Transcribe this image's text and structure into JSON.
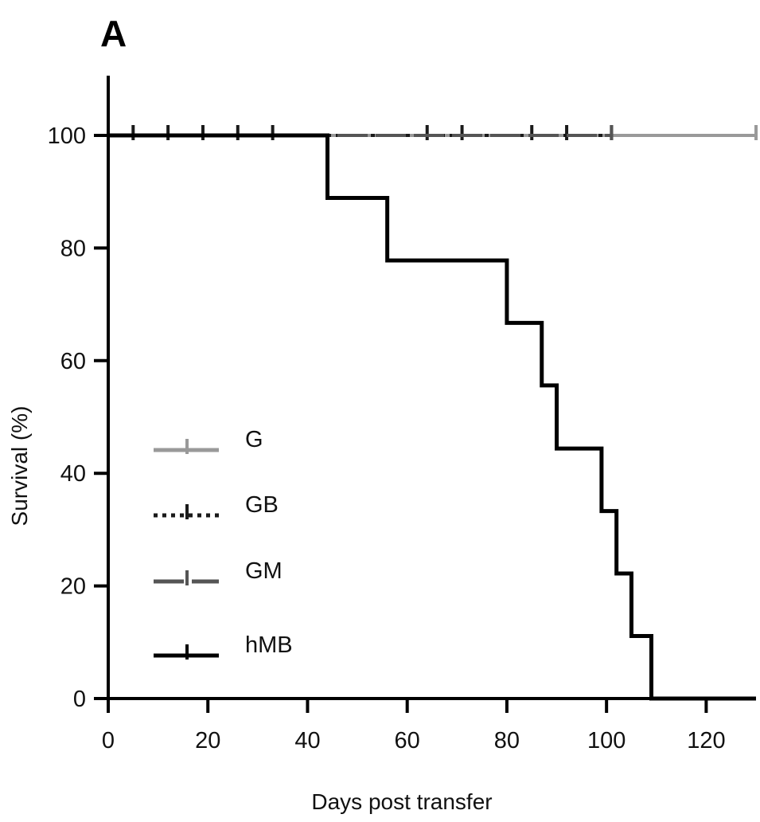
{
  "panel_label": "A",
  "chart_data": {
    "type": "line",
    "subtype": "kaplan-meier",
    "title": "",
    "xlabel": "Days post transfer",
    "ylabel": "Survival (%)",
    "xlim": [
      0,
      130
    ],
    "ylim": [
      0,
      100
    ],
    "x_ticks": [
      0,
      20,
      40,
      60,
      80,
      100,
      120
    ],
    "y_ticks": [
      0,
      20,
      40,
      60,
      80,
      100
    ],
    "grid": false,
    "legend_position": "left-middle",
    "series": [
      {
        "name": "G",
        "color": "#999999",
        "style": "solid",
        "x": [
          0,
          130
        ],
        "y": [
          100,
          100
        ],
        "censor_x": [
          101,
          130
        ]
      },
      {
        "name": "GB",
        "color": "#1a1a1a",
        "style": "dotted",
        "x": [
          0,
          101
        ],
        "y": [
          100,
          100
        ],
        "censor_x": [
          5,
          12,
          19,
          26,
          33,
          64,
          71,
          85,
          92,
          101
        ]
      },
      {
        "name": "GM",
        "color": "#555555",
        "style": "dashed",
        "x": [
          0,
          101
        ],
        "y": [
          100,
          100
        ],
        "censor_x": [
          101
        ]
      },
      {
        "name": "hMB",
        "color": "#000000",
        "style": "solid",
        "x": [
          0,
          44,
          44,
          56,
          56,
          80,
          80,
          87,
          87,
          90,
          90,
          99,
          99,
          102,
          102,
          105,
          105,
          109,
          109,
          130
        ],
        "y": [
          100,
          100,
          88.9,
          88.9,
          77.8,
          77.8,
          66.7,
          66.7,
          55.6,
          55.6,
          44.4,
          44.4,
          33.3,
          33.3,
          22.2,
          22.2,
          11.1,
          11.1,
          0,
          0
        ],
        "censor_x": []
      }
    ]
  }
}
